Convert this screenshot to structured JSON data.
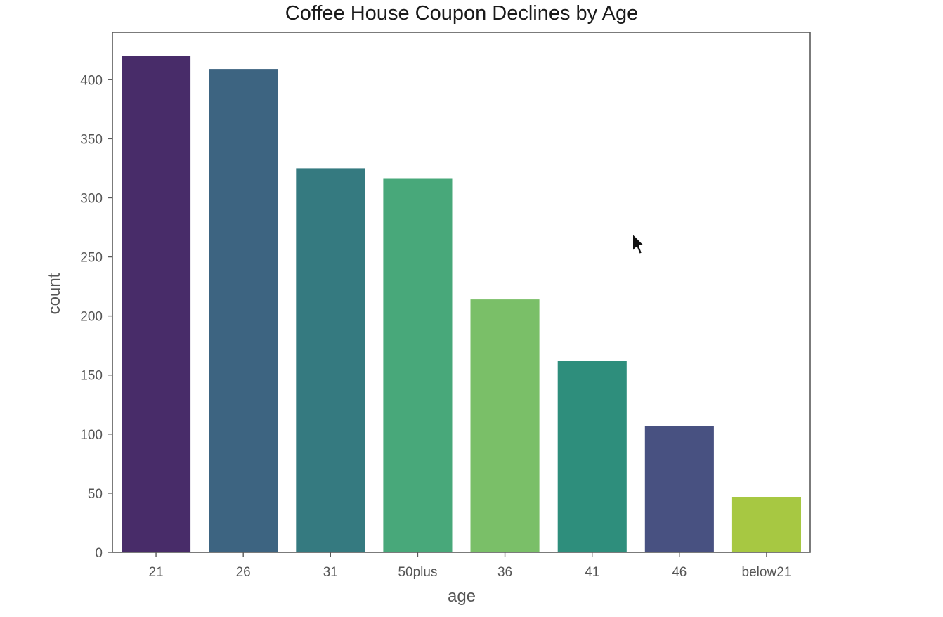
{
  "chart_data": {
    "type": "bar",
    "title": "Coffee House Coupon Declines by Age",
    "xlabel": "age",
    "ylabel": "count",
    "categories": [
      "21",
      "26",
      "31",
      "50plus",
      "36",
      "41",
      "46",
      "below21"
    ],
    "values": [
      420,
      409,
      325,
      316,
      214,
      162,
      107,
      47
    ],
    "colors": [
      "#482c69",
      "#3d6481",
      "#357a80",
      "#48a87a",
      "#7abf68",
      "#2e8e7c",
      "#485181",
      "#a7c842"
    ],
    "ylim": [
      0,
      440
    ],
    "yticks": [
      0,
      50,
      100,
      150,
      200,
      250,
      300,
      350,
      400
    ],
    "grid": false,
    "legend": "none"
  },
  "pointer": {
    "icon": "mouse-pointer-icon"
  }
}
